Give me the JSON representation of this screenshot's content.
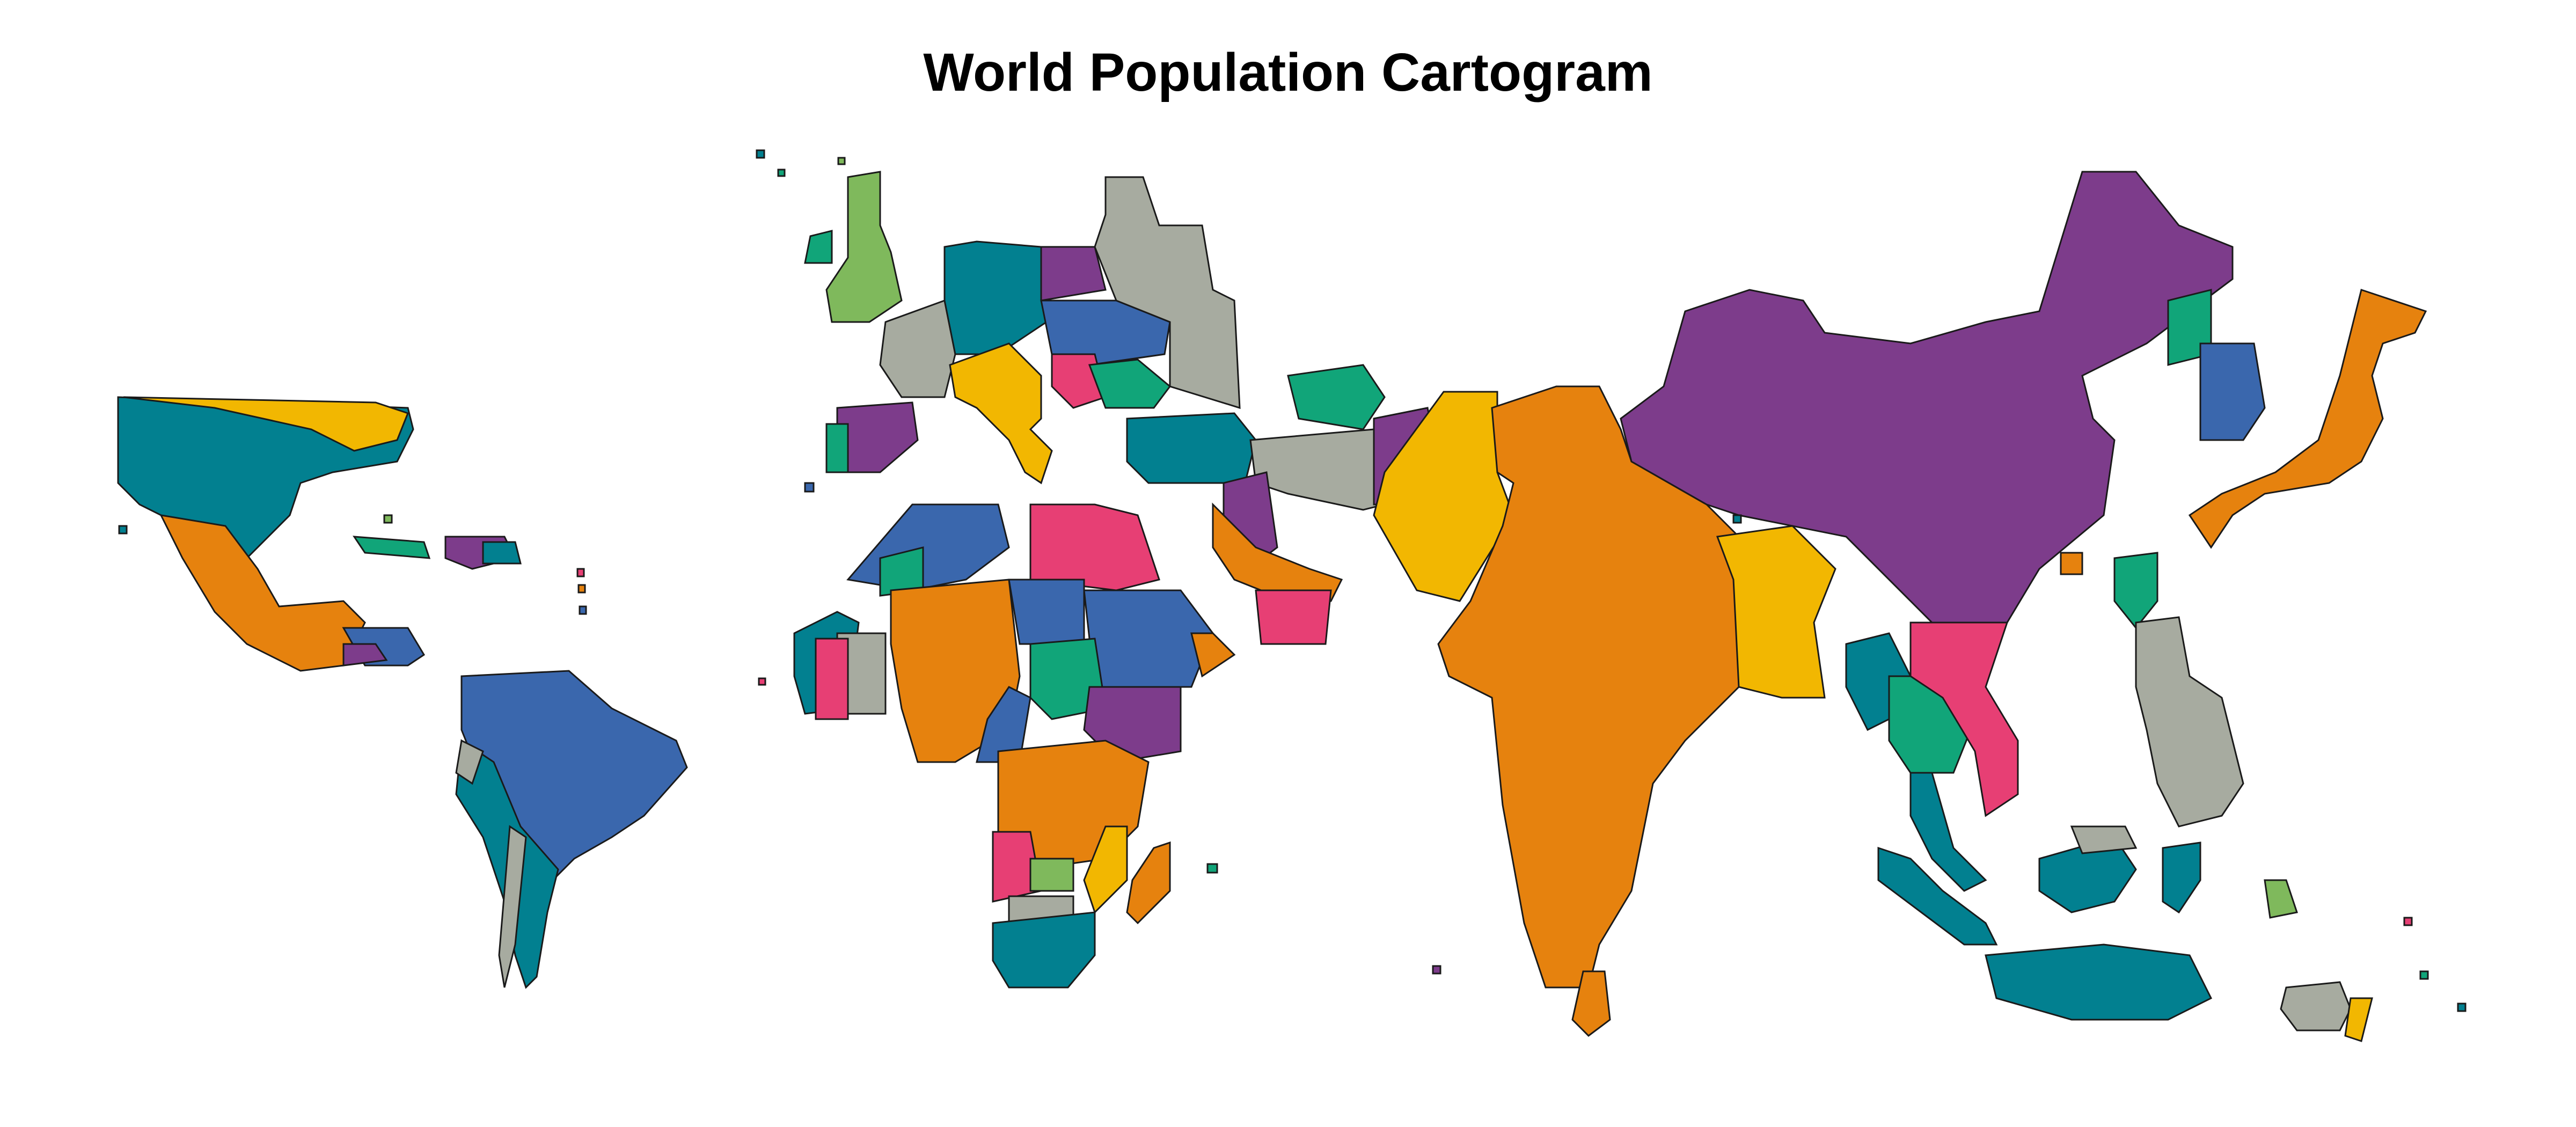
{
  "title": "World Population Cartogram",
  "palette": {
    "teal": "#028090",
    "orange": "#E6820E",
    "purple": "#7D3C8B",
    "blue": "#3A67AD",
    "grey": "#A7ABA0",
    "yellow": "#F2B701",
    "pink": "#E73F74",
    "green": "#11A579",
    "lightgreen": "#7FB95C"
  },
  "regions": [
    {
      "name": "north-america-usa-canada",
      "color": "teal"
    },
    {
      "name": "mexico",
      "color": "orange"
    },
    {
      "name": "central-america",
      "color": "blue"
    },
    {
      "name": "caribbean",
      "color": "purple"
    },
    {
      "name": "south-america-brazil",
      "color": "blue"
    },
    {
      "name": "south-america-west",
      "color": "teal"
    },
    {
      "name": "united-kingdom",
      "color": "lightgreen"
    },
    {
      "name": "europe",
      "color": "teal"
    },
    {
      "name": "russia",
      "color": "grey"
    },
    {
      "name": "italy",
      "color": "yellow"
    },
    {
      "name": "north-africa",
      "color": "blue"
    },
    {
      "name": "west-africa",
      "color": "orange"
    },
    {
      "name": "central-africa",
      "color": "blue"
    },
    {
      "name": "southern-africa",
      "color": "teal"
    },
    {
      "name": "madagascar",
      "color": "orange"
    },
    {
      "name": "middle-east",
      "color": "grey"
    },
    {
      "name": "pakistan",
      "color": "yellow"
    },
    {
      "name": "india",
      "color": "orange"
    },
    {
      "name": "china",
      "color": "purple"
    },
    {
      "name": "bangladesh",
      "color": "yellow"
    },
    {
      "name": "southeast-asia",
      "color": "green"
    },
    {
      "name": "vietnam",
      "color": "pink"
    },
    {
      "name": "japan",
      "color": "orange"
    },
    {
      "name": "korea",
      "color": "blue"
    },
    {
      "name": "philippines",
      "color": "grey"
    },
    {
      "name": "indonesia",
      "color": "teal"
    },
    {
      "name": "australia-oceania",
      "color": "grey"
    }
  ]
}
